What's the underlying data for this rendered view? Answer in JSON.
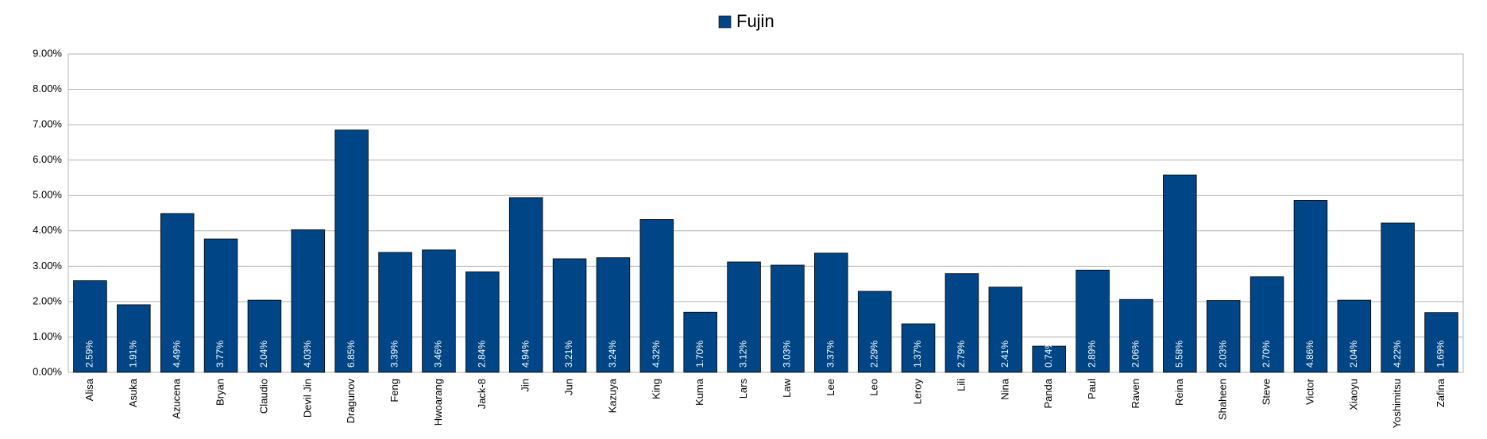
{
  "chart_data": {
    "type": "bar",
    "categories": [
      "Alisa",
      "Asuka",
      "Azucena",
      "Bryan",
      "Claudio",
      "Devil Jin",
      "Dragunov",
      "Feng",
      "Hwoarang",
      "Jack-8",
      "Jin",
      "Jun",
      "Kazuya",
      "King",
      "Kuma",
      "Lars",
      "Law",
      "Lee",
      "Leo",
      "Leroy",
      "Lili",
      "Nina",
      "Panda",
      "Paul",
      "Raven",
      "Reina",
      "Shaheen",
      "Steve",
      "Victor",
      "Xiaoyu",
      "Yoshimitsu",
      "Zafina"
    ],
    "series": [
      {
        "name": "Fujin",
        "color": "#004586",
        "values": [
          2.59,
          1.91,
          4.49,
          3.77,
          2.04,
          4.03,
          6.85,
          3.39,
          3.46,
          2.84,
          4.94,
          3.21,
          3.24,
          4.32,
          1.7,
          3.12,
          3.03,
          3.37,
          2.29,
          1.37,
          2.79,
          2.41,
          0.74,
          2.89,
          2.06,
          5.58,
          2.03,
          2.7,
          4.86,
          2.04,
          4.22,
          1.69
        ],
        "value_labels": [
          "2.59%",
          "1.91%",
          "4.49%",
          "3.77%",
          "2.04%",
          "4.03%",
          "6.85%",
          "3.39%",
          "3.46%",
          "2.84%",
          "4.94%",
          "3.21%",
          "3.24%",
          "4.32%",
          "1.70%",
          "3.12%",
          "3.03%",
          "3.37%",
          "2.29%",
          "1.37%",
          "2.79%",
          "2.41%",
          "0.74%",
          "2.89%",
          "2.06%",
          "5.58%",
          "2.03%",
          "2.70%",
          "4.86%",
          "2.04%",
          "4.22%",
          "1.69%"
        ]
      }
    ],
    "ylim": [
      0,
      9
    ],
    "yticks": [
      {
        "value": 0,
        "label": "0.00%"
      },
      {
        "value": 1,
        "label": "1.00%"
      },
      {
        "value": 2,
        "label": "2.00%"
      },
      {
        "value": 3,
        "label": "3.00%"
      },
      {
        "value": 4,
        "label": "4.00%"
      },
      {
        "value": 5,
        "label": "5.00%"
      },
      {
        "value": 6,
        "label": "6.00%"
      },
      {
        "value": 7,
        "label": "7.00%"
      },
      {
        "value": 8,
        "label": "8.00%"
      },
      {
        "value": 9,
        "label": "9.00%"
      }
    ],
    "grid": true,
    "legend": "top"
  }
}
